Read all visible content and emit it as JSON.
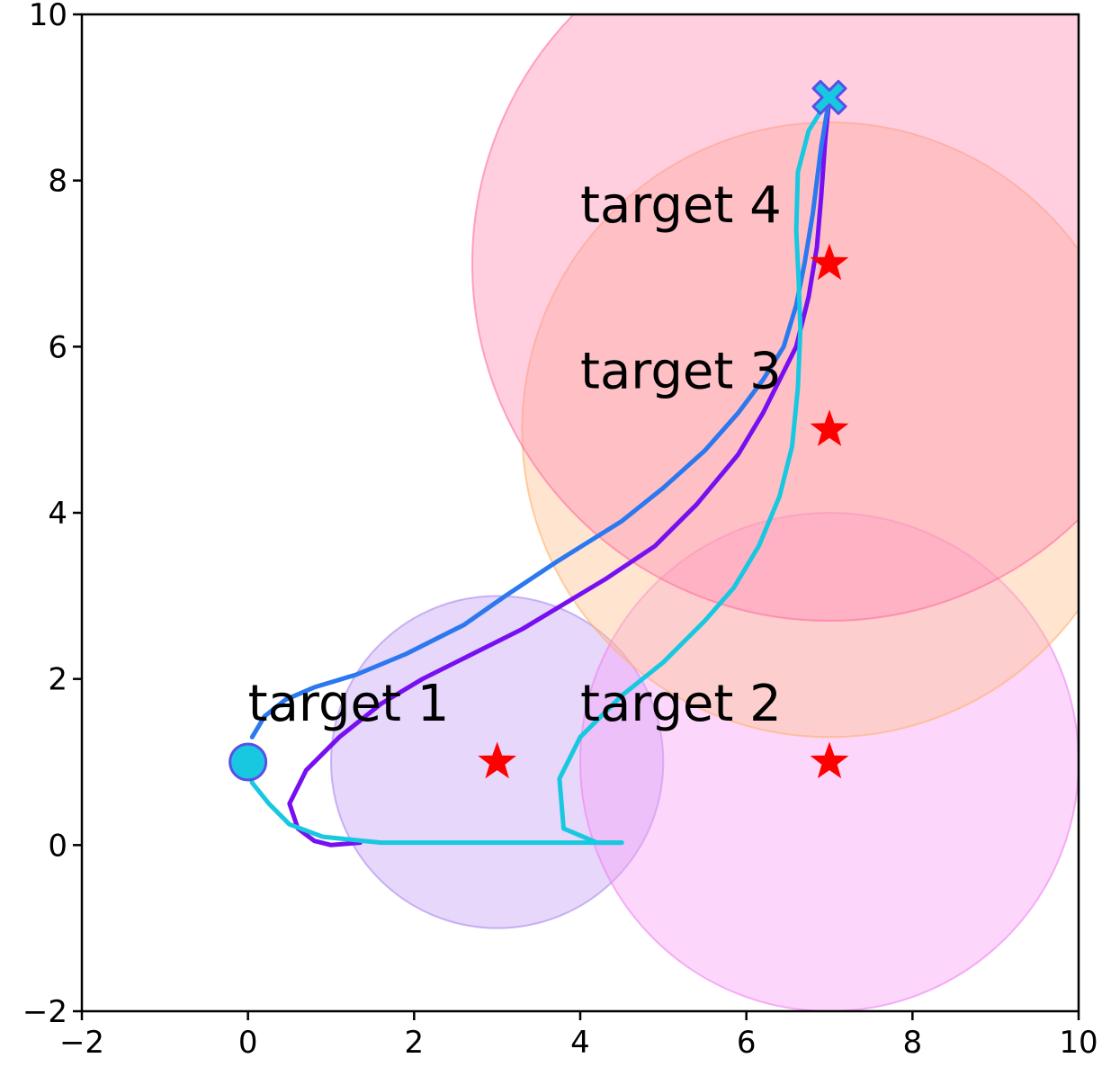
{
  "chart_data": {
    "type": "scatter",
    "xlim": [
      -2,
      10
    ],
    "ylim": [
      -2,
      10
    ],
    "x_ticks": [
      -2,
      0,
      2,
      4,
      6,
      8,
      10
    ],
    "y_ticks": [
      -2,
      0,
      2,
      4,
      6,
      8,
      10
    ],
    "x_tick_labels": [
      "−2",
      "0",
      "2",
      "4",
      "6",
      "8",
      "10"
    ],
    "y_tick_labels": [
      "−2",
      "0",
      "2",
      "4",
      "6",
      "8",
      "10"
    ],
    "grid": false,
    "regions": [
      {
        "center": [
          3,
          1
        ],
        "radius": 2.0,
        "fill": "#c5a0f5",
        "edge": "#a888ee"
      },
      {
        "center": [
          7,
          1
        ],
        "radius": 3.0,
        "fill": "#f8a0f5",
        "edge": "#f080f0"
      },
      {
        "center": [
          7,
          5
        ],
        "radius": 3.7,
        "fill": "#ffc090",
        "edge": "#ffb070"
      },
      {
        "center": [
          7,
          7
        ],
        "radius": 4.3,
        "fill": "#ff8cb4",
        "edge": "#ff6ea0"
      }
    ],
    "targets": [
      {
        "label": "target 1",
        "x": 3,
        "y": 1,
        "label_x": 0,
        "label_y": 1.5
      },
      {
        "label": "target 2",
        "x": 7,
        "y": 1,
        "label_x": 4,
        "label_y": 1.5
      },
      {
        "label": "target 3",
        "x": 7,
        "y": 5,
        "label_x": 4,
        "label_y": 5.5
      },
      {
        "label": "target 4",
        "x": 7,
        "y": 7,
        "label_x": 4,
        "label_y": 7.5
      }
    ],
    "start": {
      "x": 0,
      "y": 1,
      "color": "#17c8e0"
    },
    "end": {
      "x": 7,
      "y": 9,
      "color": "#17c8e0"
    },
    "series": [
      {
        "color": "#7710f0",
        "x": [
          1.35,
          1.0,
          0.8,
          0.6,
          0.5,
          0.7,
          1.1,
          1.6,
          2.1,
          2.7,
          3.3,
          3.8,
          4.3,
          4.9,
          5.4,
          5.9,
          6.2,
          6.4,
          6.6,
          6.75,
          6.85,
          6.9,
          6.95,
          7.0
        ],
        "y": [
          0.03,
          0.0,
          0.05,
          0.2,
          0.5,
          0.9,
          1.3,
          1.7,
          2.0,
          2.3,
          2.6,
          2.9,
          3.2,
          3.6,
          4.1,
          4.7,
          5.2,
          5.6,
          6.0,
          6.6,
          7.2,
          7.8,
          8.5,
          9.0
        ]
      },
      {
        "color": "#2c78ee",
        "x": [
          0.05,
          0.2,
          0.45,
          0.8,
          1.3,
          1.9,
          2.6,
          3.1,
          3.7,
          4.5,
          5.0,
          5.5,
          5.9,
          6.2,
          6.45,
          6.6,
          6.7,
          6.8,
          6.9,
          7.0
        ],
        "y": [
          1.3,
          1.55,
          1.75,
          1.9,
          2.05,
          2.3,
          2.65,
          3.0,
          3.4,
          3.9,
          4.3,
          4.75,
          5.2,
          5.6,
          6.0,
          6.5,
          7.0,
          7.6,
          8.4,
          9.0
        ]
      },
      {
        "color": "#17c8e0",
        "x": [
          4.5,
          4.2,
          3.8,
          3.75,
          4.0,
          4.5,
          5.0,
          5.5,
          5.85,
          6.15,
          6.4,
          6.55,
          6.62,
          6.65,
          6.63,
          6.6,
          6.62,
          6.75,
          7.0
        ],
        "y": [
          0.03,
          0.03,
          0.2,
          0.8,
          1.3,
          1.8,
          2.2,
          2.7,
          3.1,
          3.6,
          4.2,
          4.8,
          5.5,
          6.2,
          6.8,
          7.4,
          8.1,
          8.6,
          9.0
        ]
      },
      {
        "color": "#17c8e0",
        "x": [
          4.5,
          1.6,
          0.9,
          0.5,
          0.25,
          0.05,
          0.0
        ],
        "y": [
          0.03,
          0.03,
          0.1,
          0.25,
          0.5,
          0.75,
          1.0
        ]
      }
    ]
  }
}
